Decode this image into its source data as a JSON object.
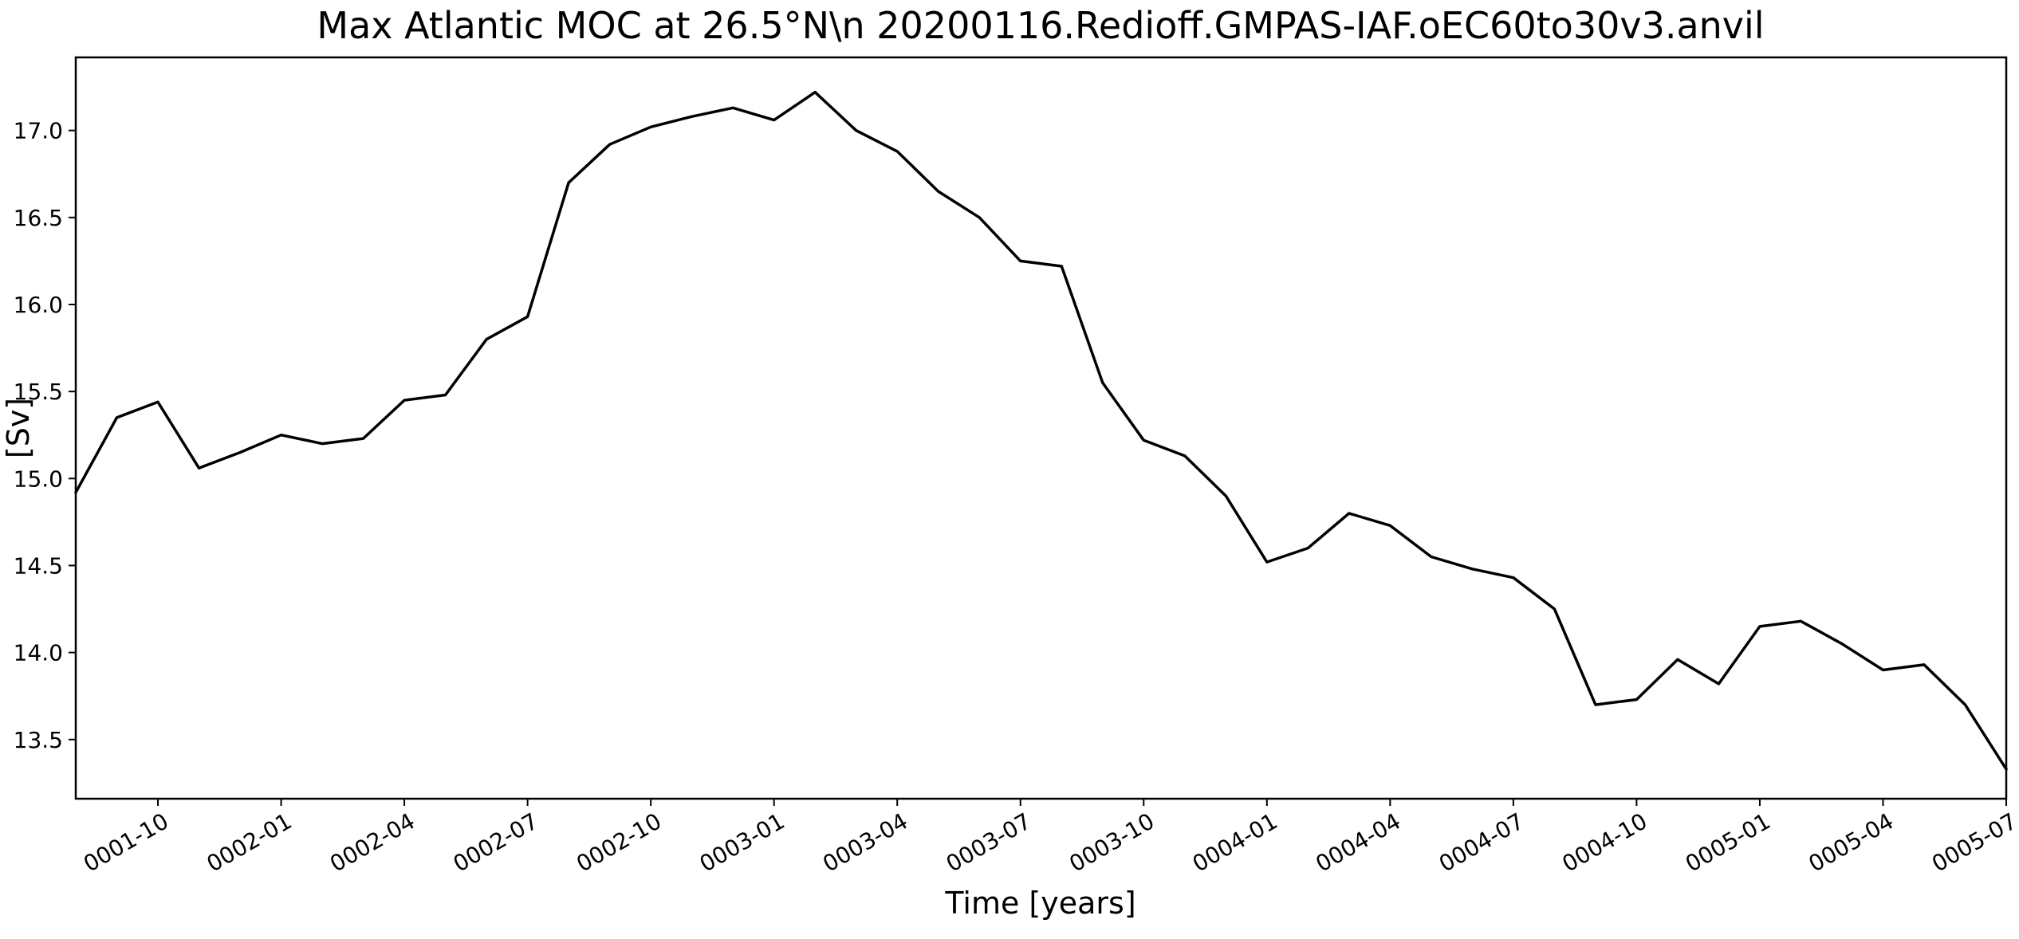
{
  "chart_data": {
    "type": "line",
    "title": "Max Atlantic MOC at 26.5°N\\n 20200116.Redioff.GMPAS-IAF.oEC60to30v3.anvil",
    "xlabel": "Time [years]",
    "ylabel": "[Sv]",
    "line_color": "#000000",
    "background_color": "#ffffff",
    "grid": false,
    "legend": "none",
    "ylim": [
      13.16,
      17.42
    ],
    "yticks": [
      13.5,
      14.0,
      14.5,
      15.0,
      15.5,
      16.0,
      16.5,
      17.0
    ],
    "xtick_labels": [
      "0001-10",
      "0002-01",
      "0002-04",
      "0002-07",
      "0002-10",
      "0003-01",
      "0003-04",
      "0003-07",
      "0003-10",
      "0004-01",
      "0004-04",
      "0004-07",
      "0004-10",
      "0005-01",
      "0005-04",
      "0005-07"
    ],
    "x": [
      "0001-08",
      "0001-09",
      "0001-10",
      "0001-11",
      "0001-12",
      "0002-01",
      "0002-02",
      "0002-03",
      "0002-04",
      "0002-05",
      "0002-06",
      "0002-07",
      "0002-08",
      "0002-09",
      "0002-10",
      "0002-11",
      "0002-12",
      "0003-01",
      "0003-02",
      "0003-03",
      "0003-04",
      "0003-05",
      "0003-06",
      "0003-07",
      "0003-08",
      "0003-09",
      "0003-10",
      "0003-11",
      "0003-12",
      "0004-01",
      "0004-02",
      "0004-03",
      "0004-04",
      "0004-05",
      "0004-06",
      "0004-07",
      "0004-08",
      "0004-09",
      "0004-10",
      "0004-11",
      "0004-12",
      "0005-01",
      "0005-02",
      "0005-03",
      "0005-04",
      "0005-05",
      "0005-06",
      "0005-07"
    ],
    "values": [
      14.92,
      15.35,
      15.44,
      15.06,
      15.15,
      15.25,
      15.2,
      15.23,
      15.45,
      15.48,
      15.8,
      15.93,
      16.7,
      16.92,
      17.02,
      17.08,
      17.13,
      17.06,
      17.22,
      17.0,
      16.88,
      16.65,
      16.5,
      16.25,
      16.22,
      15.55,
      15.22,
      15.13,
      14.9,
      14.52,
      14.6,
      14.8,
      14.73,
      14.55,
      14.48,
      14.43,
      14.25,
      13.7,
      13.73,
      13.96,
      13.82,
      14.15,
      14.18,
      14.05,
      13.9,
      13.93,
      13.7,
      13.33
    ]
  }
}
